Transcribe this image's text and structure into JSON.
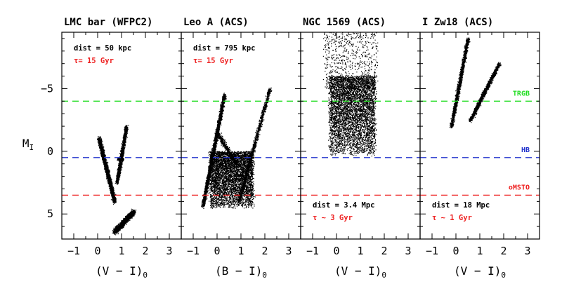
{
  "chart_data": {
    "type": "scatter",
    "y_label": "M",
    "y_label_sub": "I",
    "y_range": [
      -9.5,
      7
    ],
    "y_inverted": true,
    "y_ticks": [
      {
        "value": -5,
        "label": "−5"
      },
      {
        "value": 0,
        "label": "0"
      },
      {
        "value": 5,
        "label": "5"
      }
    ],
    "x_range": [
      -1.5,
      3.5
    ],
    "x_ticks": [
      {
        "value": -1,
        "label": "−1"
      },
      {
        "value": 0,
        "label": "0"
      },
      {
        "value": 1,
        "label": "1"
      },
      {
        "value": 2,
        "label": "2"
      },
      {
        "value": 3,
        "label": "3"
      }
    ],
    "reference_lines": [
      {
        "name": "TRGB",
        "y": -4.0,
        "color": "#22dd22",
        "label": "TRGB"
      },
      {
        "name": "HB",
        "y": 0.5,
        "color": "#2233cc",
        "label": "HB"
      },
      {
        "name": "oMSTO",
        "y": 3.5,
        "color": "#ee2222",
        "label": "oMSTO"
      }
    ],
    "panels": [
      {
        "title": "LMC bar (WFPC2)",
        "xlabel_main": "(V − I)",
        "xlabel_sub": "0",
        "notes": [
          {
            "text": "dist = 50 kpc",
            "color": "#000000",
            "position": "top-left"
          },
          {
            "text": "τ= 15 Gyr",
            "color": "#ee2222",
            "position": "top-left"
          }
        ],
        "features": [
          {
            "kind": "lower_main_sequence",
            "x": [
              0.7,
              1.5
            ],
            "y": [
              6.4,
              4.8
            ]
          },
          {
            "kind": "main_sequence",
            "x": [
              0.05,
              0.7
            ],
            "y": [
              -1.0,
              4.0
            ]
          },
          {
            "kind": "red_giant_branch",
            "x": [
              0.8,
              1.2
            ],
            "y": [
              2.5,
              -2.0
            ]
          },
          {
            "kind": "red_clump",
            "x": [
              0.85,
              1.05
            ],
            "y": [
              0.6,
              0.6
            ]
          }
        ]
      },
      {
        "title": "Leo A (ACS)",
        "xlabel_main": "(B − I)",
        "xlabel_sub": "0",
        "notes": [
          {
            "text": "dist = 795 kpc",
            "color": "#000000",
            "position": "top-left"
          },
          {
            "text": "τ= 15 Gyr",
            "color": "#ee2222",
            "position": "top-left"
          }
        ],
        "features": [
          {
            "kind": "main_sequence",
            "x": [
              -0.6,
              0.3
            ],
            "y": [
              4.3,
              -4.5
            ]
          },
          {
            "kind": "red_giant_branch",
            "x": [
              0.9,
              2.2
            ],
            "y": [
              4.0,
              -5.0
            ]
          },
          {
            "kind": "bulk_population",
            "x": [
              -0.3,
              1.5
            ],
            "y": [
              4.5,
              0.0
            ]
          },
          {
            "kind": "blue_loop",
            "x": [
              0.0,
              0.8
            ],
            "y": [
              -1.5,
              1.0
            ]
          }
        ]
      },
      {
        "title": "NGC 1569 (ACS)",
        "xlabel_main": "(V − I)",
        "xlabel_sub": "0",
        "notes": [
          {
            "text": "dist = 3.4 Mpc",
            "color": "#000000",
            "position": "bottom-left"
          },
          {
            "text": "τ ~ 3 Gyr",
            "color": "#ee2222",
            "position": "bottom-left"
          }
        ],
        "features": [
          {
            "kind": "bulk_population",
            "x": [
              -0.3,
              1.6
            ],
            "y": [
              0.3,
              -6.0
            ]
          },
          {
            "kind": "upper_sparse",
            "x": [
              -0.5,
              1.7
            ],
            "y": [
              -5.0,
              -9.5
            ]
          }
        ]
      },
      {
        "title": "I Zw18 (ACS)",
        "xlabel_main": "(V − I)",
        "xlabel_sub": "0",
        "notes": [
          {
            "text": "dist = 18 Mpc",
            "color": "#000000",
            "position": "bottom-left"
          },
          {
            "text": "τ ~ 1 Gyr",
            "color": "#ee2222",
            "position": "bottom-left"
          }
        ],
        "features": [
          {
            "kind": "blue_plume",
            "x": [
              -0.2,
              0.5
            ],
            "y": [
              -2.0,
              -9.0
            ]
          },
          {
            "kind": "red_giant_branch",
            "x": [
              0.6,
              1.8
            ],
            "y": [
              -2.5,
              -7.0
            ]
          }
        ]
      }
    ]
  }
}
